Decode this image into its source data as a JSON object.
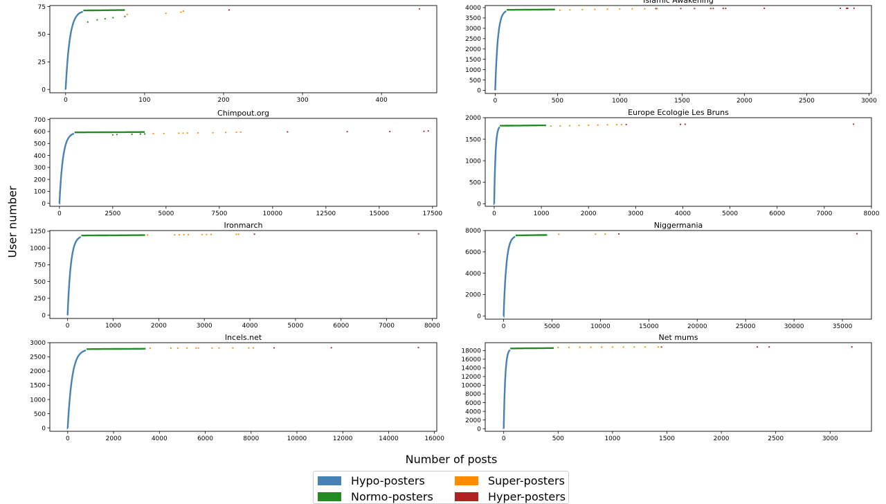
{
  "figure": {
    "ylabel": "User number",
    "xlabel": "Number of posts",
    "legend": [
      {
        "label": "Hypo-posters",
        "color": "#4682b4"
      },
      {
        "label": "Super-posters",
        "color": "#ff8c00"
      },
      {
        "label": "Normo-posters",
        "color": "#228b22"
      },
      {
        "label": "Hyper-posters",
        "color": "#b22222"
      }
    ]
  },
  "chart_data": [
    {
      "type": "scatter",
      "title": "",
      "xlim": [
        -20,
        470
      ],
      "ylim": [
        -3,
        76
      ],
      "xticks": [
        0,
        100,
        200,
        300,
        400
      ],
      "yticks": [
        0,
        25,
        50,
        75
      ],
      "curve": {
        "max_users": 73,
        "last_hypo_x": 22,
        "last_normo_x": 75
      },
      "series": [
        {
          "name": "Normo-posters",
          "points": [
            [
              28,
              61
            ],
            [
              40,
              63
            ],
            [
              50,
              64
            ],
            [
              60,
              65
            ],
            [
              75,
              66
            ]
          ]
        },
        {
          "name": "Super-posters",
          "points": [
            [
              78,
              68
            ],
            [
              127,
              69
            ],
            [
              146,
              70
            ],
            [
              149,
              71
            ]
          ]
        },
        {
          "name": "Hyper-posters",
          "points": [
            [
              207,
              72
            ],
            [
              448,
              73
            ]
          ]
        }
      ]
    },
    {
      "type": "scatter",
      "title": "Islamic Awakening",
      "xlim": [
        -80,
        3020
      ],
      "ylim": [
        -150,
        4100
      ],
      "xticks": [
        0,
        500,
        1000,
        1500,
        2000,
        2500,
        3000
      ],
      "yticks": [
        0,
        500,
        1000,
        1500,
        2000,
        2500,
        3000,
        3500,
        4000
      ],
      "curve": {
        "max_users": 3970,
        "last_hypo_x": 90,
        "last_normo_x": 480
      },
      "series": [
        {
          "name": "Super-posters",
          "points": [
            [
              520,
              3875
            ],
            [
              600,
              3890
            ],
            [
              700,
              3905
            ],
            [
              800,
              3915
            ],
            [
              900,
              3925
            ],
            [
              1000,
              3932
            ],
            [
              1100,
              3940
            ],
            [
              1200,
              3945
            ],
            [
              1300,
              3950
            ]
          ]
        },
        {
          "name": "Hyper-posters",
          "points": [
            [
              1290,
              3952
            ],
            [
              1490,
              3955
            ],
            [
              1600,
              3957
            ],
            [
              1730,
              3960
            ],
            [
              1750,
              3961
            ],
            [
              1830,
              3962
            ],
            [
              1850,
              3963
            ],
            [
              2160,
              3965
            ],
            [
              2770,
              3966
            ],
            [
              2820,
              3967
            ],
            [
              2830,
              3968
            ],
            [
              2880,
              3970
            ]
          ]
        }
      ]
    },
    {
      "type": "scatter",
      "title": "Chimpout.org",
      "xlim": [
        -450,
        17700
      ],
      "ylim": [
        -25,
        710
      ],
      "xticks": [
        0,
        2500,
        5000,
        7500,
        10000,
        12500,
        15000,
        17500
      ],
      "yticks": [
        0,
        100,
        200,
        300,
        400,
        500,
        600,
        700
      ],
      "curve": {
        "max_users": 605,
        "last_hypo_x": 700,
        "last_normo_x": 4000
      },
      "series": [
        {
          "name": "Normo-posters",
          "points": [
            [
              2500,
              572
            ],
            [
              2700,
              575
            ],
            [
              3400,
              577
            ],
            [
              3800,
              579
            ],
            [
              4000,
              580
            ]
          ]
        },
        {
          "name": "Super-posters",
          "points": [
            [
              4400,
              582
            ],
            [
              4900,
              584
            ],
            [
              5600,
              586
            ],
            [
              5800,
              587
            ],
            [
              6000,
              588
            ],
            [
              6500,
              589
            ],
            [
              7200,
              590
            ],
            [
              7800,
              592
            ],
            [
              8300,
              594
            ],
            [
              8500,
              595
            ]
          ]
        },
        {
          "name": "Hyper-posters",
          "points": [
            [
              10700,
              597
            ],
            [
              13500,
              599
            ],
            [
              15500,
              600
            ],
            [
              17100,
              602
            ],
            [
              17300,
              605
            ]
          ]
        }
      ]
    },
    {
      "type": "scatter",
      "title": "Europe Ecologie Les Bruns",
      "xlim": [
        -190,
        8000
      ],
      "ylim": [
        -60,
        2000
      ],
      "xticks": [
        0,
        1000,
        2000,
        3000,
        4000,
        5000,
        6000,
        7000,
        8000
      ],
      "yticks": [
        0,
        500,
        1000,
        1500,
        2000
      ],
      "curve": {
        "max_users": 1850,
        "last_hypo_x": 120,
        "last_normo_x": 1100
      },
      "series": [
        {
          "name": "Super-posters",
          "points": [
            [
              1200,
              1805
            ],
            [
              1400,
              1810
            ],
            [
              1600,
              1815
            ],
            [
              1800,
              1820
            ],
            [
              2000,
              1825
            ],
            [
              2200,
              1830
            ],
            [
              2400,
              1835
            ],
            [
              2600,
              1838
            ],
            [
              2700,
              1840
            ]
          ]
        },
        {
          "name": "Hyper-posters",
          "points": [
            [
              2800,
              1843
            ],
            [
              3950,
              1845
            ],
            [
              4050,
              1847
            ],
            [
              7620,
              1850
            ]
          ]
        }
      ]
    },
    {
      "type": "scatter",
      "title": "Ironmarch",
      "xlim": [
        -390,
        8100
      ],
      "ylim": [
        -50,
        1260
      ],
      "xticks": [
        0,
        1000,
        2000,
        3000,
        4000,
        5000,
        6000,
        7000,
        8000
      ],
      "yticks": [
        0,
        250,
        500,
        750,
        1000,
        1250
      ],
      "curve": {
        "max_users": 1210,
        "last_hypo_x": 300,
        "last_normo_x": 1700
      },
      "series": [
        {
          "name": "Super-posters",
          "points": [
            [
              1750,
              1195
            ],
            [
              2350,
              1196
            ],
            [
              2450,
              1197
            ],
            [
              2550,
              1198
            ],
            [
              2650,
              1199
            ],
            [
              2950,
              1200
            ],
            [
              3050,
              1201
            ],
            [
              3150,
              1202
            ],
            [
              3700,
              1203
            ],
            [
              3750,
              1204
            ]
          ]
        },
        {
          "name": "Hyper-posters",
          "points": [
            [
              4100,
              1206
            ],
            [
              7700,
              1210
            ]
          ]
        }
      ]
    },
    {
      "type": "scatter",
      "title": "Niggermania",
      "xlim": [
        -1900,
        38000
      ],
      "ylim": [
        -300,
        8000
      ],
      "xticks": [
        0,
        5000,
        10000,
        15000,
        20000,
        25000,
        30000,
        35000
      ],
      "yticks": [
        0,
        2000,
        4000,
        6000,
        8000
      ],
      "curve": {
        "max_users": 7700,
        "last_hypo_x": 1200,
        "last_normo_x": 4500
      },
      "series": [
        {
          "name": "Super-posters",
          "points": [
            [
              5700,
              7650
            ],
            [
              9500,
              7660
            ],
            [
              10500,
              7670
            ]
          ]
        },
        {
          "name": "Hyper-posters",
          "points": [
            [
              11900,
              7680
            ],
            [
              36500,
              7700
            ]
          ]
        }
      ]
    },
    {
      "type": "scatter",
      "title": "Incels.net",
      "xlim": [
        -780,
        16100
      ],
      "ylim": [
        -120,
        3000
      ],
      "xticks": [
        0,
        2000,
        4000,
        6000,
        8000,
        10000,
        12000,
        14000,
        16000
      ],
      "yticks": [
        0,
        500,
        1000,
        1500,
        2000,
        2500,
        3000
      ],
      "curve": {
        "max_users": 2830,
        "last_hypo_x": 800,
        "last_normo_x": 3400
      },
      "series": [
        {
          "name": "Super-posters",
          "points": [
            [
              3600,
              2805
            ],
            [
              4500,
              2807
            ],
            [
              4800,
              2808
            ],
            [
              5200,
              2809
            ],
            [
              5600,
              2810
            ],
            [
              5700,
              2811
            ],
            [
              6300,
              2812
            ],
            [
              6600,
              2813
            ],
            [
              7200,
              2814
            ],
            [
              7900,
              2815
            ],
            [
              8100,
              2816
            ]
          ]
        },
        {
          "name": "Hyper-posters",
          "points": [
            [
              9000,
              2818
            ],
            [
              11500,
              2822
            ],
            [
              15300,
              2830
            ]
          ]
        }
      ]
    },
    {
      "type": "scatter",
      "title": "Net mums",
      "xlim": [
        -170,
        3380
      ],
      "ylim": [
        -600,
        19800
      ],
      "xticks": [
        0,
        500,
        1000,
        1500,
        2000,
        2500,
        3000
      ],
      "yticks": [
        0,
        2000,
        4000,
        6000,
        8000,
        10000,
        12000,
        14000,
        16000,
        18000
      ],
      "curve": {
        "max_users": 18850,
        "last_hypo_x": 60,
        "last_normo_x": 460
      },
      "series": [
        {
          "name": "Super-posters",
          "points": [
            [
              500,
              18720
            ],
            [
              600,
              18740
            ],
            [
              700,
              18760
            ],
            [
              800,
              18770
            ],
            [
              900,
              18780
            ],
            [
              1000,
              18790
            ],
            [
              1100,
              18800
            ],
            [
              1200,
              18805
            ],
            [
              1300,
              18810
            ],
            [
              1420,
              18815
            ]
          ]
        },
        {
          "name": "Hyper-posters",
          "points": [
            [
              1450,
              18818
            ],
            [
              2330,
              18830
            ],
            [
              2440,
              18835
            ],
            [
              3200,
              18850
            ]
          ]
        }
      ]
    }
  ]
}
